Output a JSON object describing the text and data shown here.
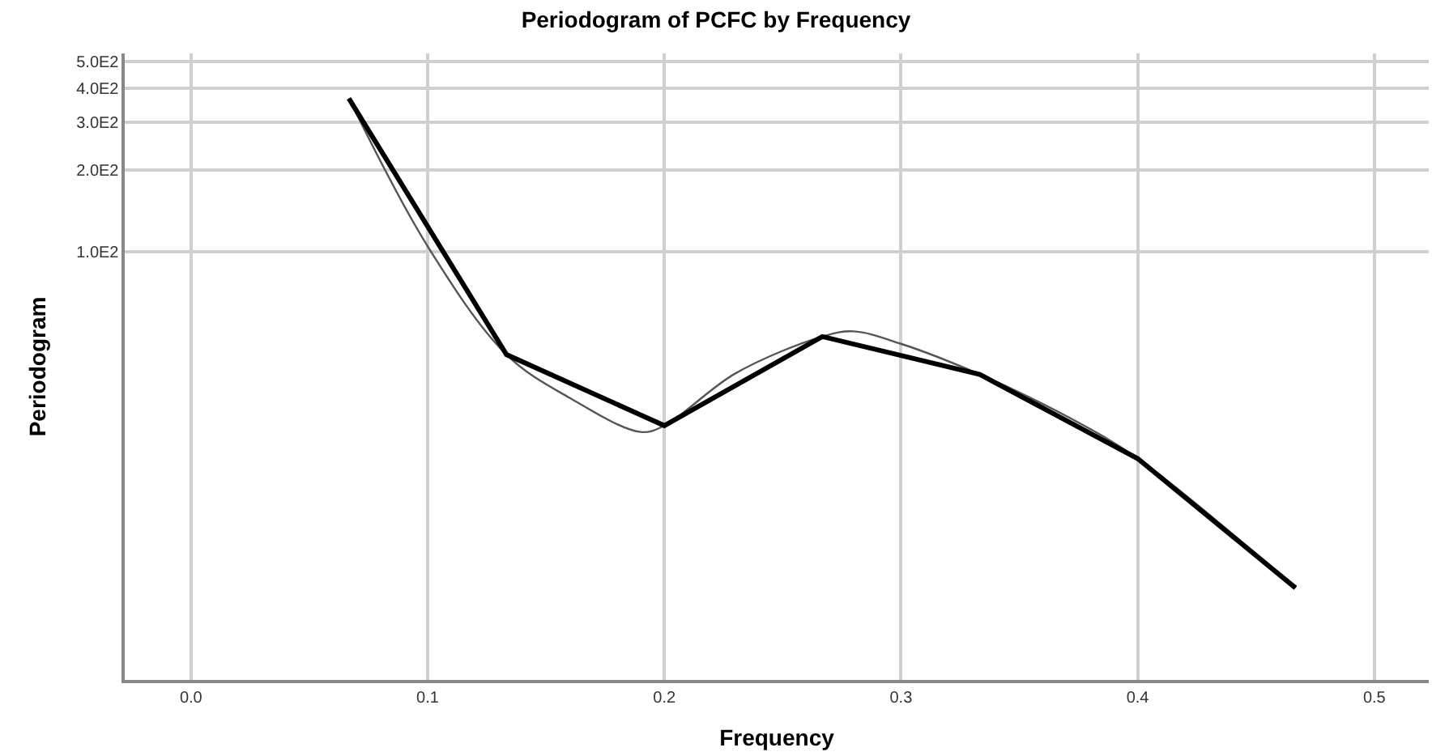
{
  "chart_data": {
    "type": "line",
    "title": "Periodogram of PCFC by Frequency",
    "xlabel": "Frequency",
    "ylabel": "Periodogram",
    "log": "y",
    "grid": true,
    "marker": "none",
    "line_style": "solid",
    "xlim": [
      -0.028,
      0.523
    ],
    "xticks": [
      {
        "value": 0,
        "label": "0.0"
      },
      0.1,
      0.2,
      0.3,
      0.4,
      0.5
    ],
    "ylim": [
      2.7,
      535
    ],
    "yticks": [
      {
        "value": 100,
        "label": "1.0E2"
      },
      {
        "value": 200,
        "label": "2.0E2"
      },
      {
        "value": 300,
        "label": "3.0E2"
      },
      {
        "value": 400,
        "label": "4.0E2"
      },
      {
        "value": 500,
        "label": "5.0E2"
      }
    ],
    "series": [
      {
        "color": "#555555",
        "x": [
          0.0667,
          0.1,
          0.1333,
          0.16,
          0.19,
          0.2,
          0.23,
          0.2667,
          0.28,
          0.3,
          0.3333,
          0.37,
          0.4,
          0.4667
        ],
        "values": [
          366,
          105,
          42.1,
          29.2,
          21.9,
          23.1,
          35.9,
          49.0,
          51.2,
          46.1,
          35.6,
          25,
          17.5,
          5.87
        ]
      },
      {
        "color": "#000000",
        "x": [
          0.0667,
          0.1333,
          0.2,
          0.2667,
          0.3333,
          0.4,
          0.4667
        ],
        "values": [
          366,
          42.1,
          23.1,
          49.0,
          35.6,
          17.5,
          5.87
        ]
      }
    ]
  }
}
